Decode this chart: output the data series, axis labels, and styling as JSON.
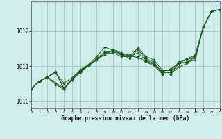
{
  "bg_color": "#d0ecec",
  "grid_color": "#a0c8c8",
  "line_color": "#1a5c1a",
  "marker_color": "#1a5c1a",
  "xlabel": "Graphe pression niveau de la mer (hPa)",
  "xlim": [
    0,
    23
  ],
  "ylim": [
    1009.8,
    1012.85
  ],
  "yticks": [
    1010,
    1011,
    1012
  ],
  "xticks": [
    0,
    1,
    2,
    3,
    4,
    5,
    6,
    7,
    8,
    9,
    10,
    11,
    12,
    13,
    14,
    15,
    16,
    17,
    18,
    19,
    20,
    21,
    22,
    23
  ],
  "series": [
    [
      1010.35,
      1010.58,
      1010.7,
      1010.82,
      1010.52,
      1010.68,
      1010.88,
      1011.02,
      1011.18,
      1011.38,
      1011.45,
      1011.35,
      1011.3,
      1011.25,
      1011.15,
      1011.05,
      1010.85,
      1010.92,
      1011.08,
      1011.12,
      1011.18,
      1012.12,
      1012.57,
      1012.62
    ],
    [
      1010.35,
      1010.58,
      1010.7,
      1010.52,
      1010.38,
      1010.62,
      1010.85,
      1011.05,
      1011.28,
      1011.55,
      1011.45,
      1011.35,
      1011.22,
      1011.48,
      1011.22,
      1011.12,
      1010.78,
      1010.78,
      1011.08,
      1011.22,
      1011.32,
      1012.12,
      1012.57,
      1012.62
    ],
    [
      1010.35,
      1010.58,
      1010.7,
      1010.82,
      1010.38,
      1010.65,
      1010.9,
      1011.05,
      1011.18,
      1011.38,
      1011.38,
      1011.28,
      1011.28,
      1011.52,
      1011.28,
      1011.18,
      1010.88,
      1010.88,
      1011.12,
      1011.18,
      1011.28,
      1012.12,
      1012.57,
      1012.62
    ],
    [
      1010.35,
      1010.58,
      1010.7,
      1010.85,
      1010.35,
      1010.62,
      1010.85,
      1011.02,
      1011.22,
      1011.32,
      1011.48,
      1011.38,
      1011.32,
      1011.28,
      1011.12,
      1011.02,
      1010.78,
      1010.78,
      1010.98,
      1011.08,
      1011.32,
      1012.12,
      1012.57,
      1012.62
    ],
    [
      1010.35,
      1010.58,
      1010.68,
      1010.48,
      1010.35,
      1010.62,
      1010.82,
      1011.02,
      1011.22,
      1011.42,
      1011.42,
      1011.32,
      1011.28,
      1011.38,
      1011.18,
      1011.08,
      1010.82,
      1010.82,
      1011.08,
      1011.12,
      1011.25,
      1012.12,
      1012.57,
      1012.62
    ]
  ],
  "figsize": [
    3.2,
    2.0
  ],
  "dpi": 100
}
